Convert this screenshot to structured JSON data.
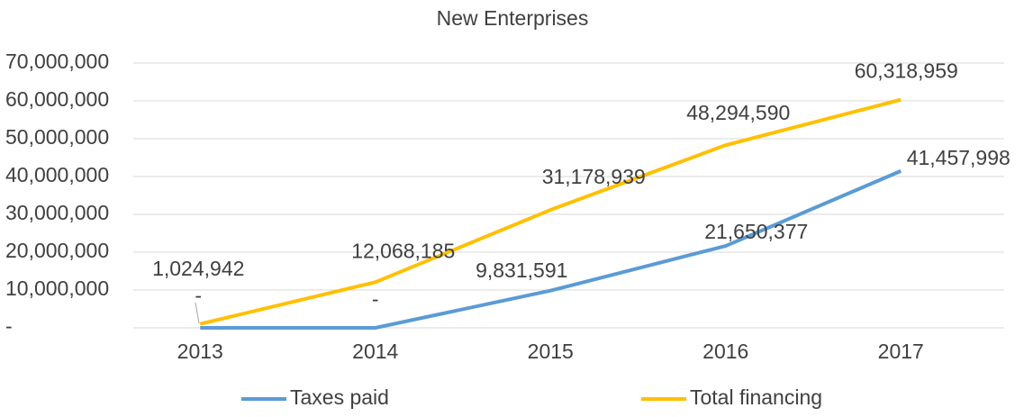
{
  "chart_data": {
    "type": "line",
    "title": "New Enterprises",
    "categories": [
      "2013",
      "2014",
      "2015",
      "2016",
      "2017"
    ],
    "series": [
      {
        "name": "Taxes paid",
        "color": "#5b9bd5",
        "values": [
          0,
          0,
          9831591,
          21650377,
          41457998
        ],
        "value_labels": [
          "-",
          "-",
          "9,831,591",
          "21,650,377",
          "41,457,998"
        ]
      },
      {
        "name": "Total financing",
        "color": "#ffc000",
        "values": [
          1024942,
          12068185,
          31178939,
          48294590,
          60318959
        ],
        "value_labels": [
          "1,024,942",
          "12,068,185",
          "31,178,939",
          "48,294,590",
          "60,318,959"
        ]
      }
    ],
    "ylim": [
      0,
      70000000
    ],
    "yticks": [
      {
        "value": 0,
        "label": "-"
      },
      {
        "value": 10000000,
        "label": "10,000,000"
      },
      {
        "value": 20000000,
        "label": "20,000,000"
      },
      {
        "value": 30000000,
        "label": "30,000,000"
      },
      {
        "value": 40000000,
        "label": "40,000,000"
      },
      {
        "value": 50000000,
        "label": "50,000,000"
      },
      {
        "value": 60000000,
        "label": "60,000,000"
      },
      {
        "value": 70000000,
        "label": "70,000,000"
      }
    ],
    "grid": true,
    "legend": "bottom"
  }
}
